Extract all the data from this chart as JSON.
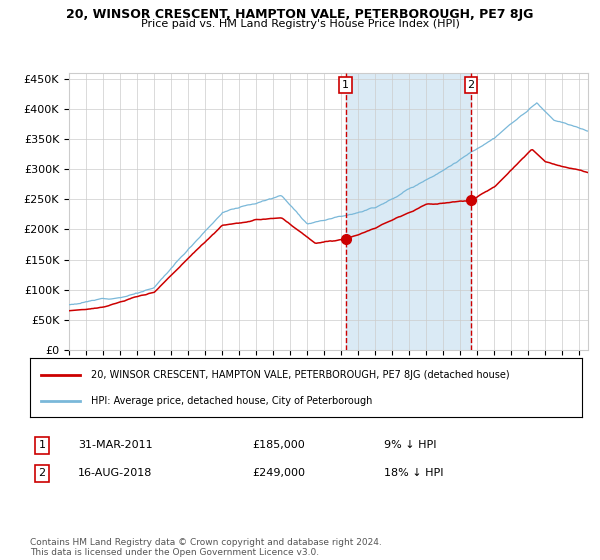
{
  "title": "20, WINSOR CRESCENT, HAMPTON VALE, PETERBOROUGH, PE7 8JG",
  "subtitle": "Price paid vs. HM Land Registry's House Price Index (HPI)",
  "legend_line1": "20, WINSOR CRESCENT, HAMPTON VALE, PETERBOROUGH, PE7 8JG (detached house)",
  "legend_line2": "HPI: Average price, detached house, City of Peterborough",
  "annotation1_num": "1",
  "annotation1_date": "31-MAR-2011",
  "annotation1_price": "£185,000",
  "annotation1_hpi": "9% ↓ HPI",
  "annotation2_num": "2",
  "annotation2_date": "16-AUG-2018",
  "annotation2_price": "£249,000",
  "annotation2_hpi": "18% ↓ HPI",
  "footnote": "Contains HM Land Registry data © Crown copyright and database right 2024.\nThis data is licensed under the Open Government Licence v3.0.",
  "ylim": [
    0,
    460000
  ],
  "yticks": [
    0,
    50000,
    100000,
    150000,
    200000,
    250000,
    300000,
    350000,
    400000,
    450000
  ],
  "hpi_color": "#7ab8d9",
  "price_color": "#cc0000",
  "marker_color": "#cc0000",
  "vline_color": "#cc0000",
  "shade_color": "#daeaf5",
  "background_color": "#ffffff",
  "grid_color": "#cccccc",
  "sale1_x": 2011.25,
  "sale1_y": 185000,
  "sale2_x": 2018.62,
  "sale2_y": 249000,
  "xlim_left": 1995.0,
  "xlim_right": 2025.5
}
